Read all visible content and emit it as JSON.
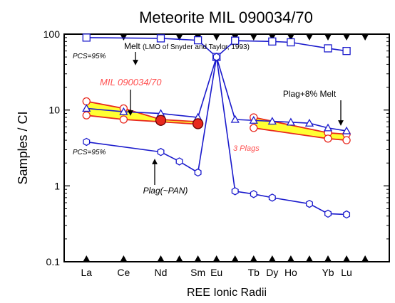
{
  "chart_data": {
    "type": "line",
    "title": "Meteorite MIL 090034/70",
    "xlabel": "REE Ionic Radii",
    "ylabel": "Samples / CI",
    "yscale": "log",
    "ylim": [
      0.1,
      100
    ],
    "yticks": [
      "0.1",
      "1",
      "10",
      "100"
    ],
    "categories": [
      "La",
      "Ce",
      "Nd",
      "Sm",
      "Eu",
      "Tb",
      "Dy",
      "Ho",
      "Yb",
      "Lu"
    ],
    "x_positions": [
      1,
      2,
      3,
      3.5,
      4,
      4.5,
      5,
      5.5,
      6,
      6.5,
      7,
      7.5,
      8,
      8.5
    ],
    "annotations": {
      "melt": "Melt",
      "melt_ref": "(LMO of Snyder and Taylor, 1993)",
      "pcs_top": "PCS=95%",
      "pcs_bottom": "PCS=95%",
      "sample": "MIL 090034/70",
      "plags": "3 Plags",
      "plag_melt": "Plag+8% Melt",
      "plag_pan": "Plag(~PAN)"
    },
    "colors": {
      "model": "#1a1acc",
      "sample": "#e8281e",
      "band": "#ffff33",
      "band_edge": "#c8a000",
      "sample_text": "#ff5050"
    },
    "series": [
      {
        "id": "melt",
        "color": "#1a1acc",
        "marker": "square",
        "points": [
          [
            1,
            90
          ],
          [
            3,
            88
          ],
          [
            4.5,
            83
          ],
          [
            5,
            50
          ],
          [
            5.5,
            82
          ],
          [
            6.5,
            80
          ],
          [
            7,
            78
          ],
          [
            8.5,
            65
          ],
          [
            9,
            60
          ]
        ]
      },
      {
        "id": "plag_pan",
        "color": "#1a1acc",
        "marker": "hexagon",
        "segments": [
          [
            [
              1,
              3.8
            ],
            [
              3,
              2.8
            ],
            [
              4,
              2.1
            ],
            [
              4.5,
              1.5
            ],
            [
              5,
              50
            ]
          ],
          [
            [
              5,
              50
            ],
            [
              5.5,
              0.85
            ],
            [
              6,
              0.78
            ],
            [
              6.5,
              0.7
            ],
            [
              7.5,
              0.58
            ],
            [
              8.5,
              0.43
            ],
            [
              9,
              0.42
            ]
          ]
        ]
      },
      {
        "id": "plag_melt",
        "color": "#1a1acc",
        "marker": "triangle",
        "segments": [
          [
            [
              1,
              10.5
            ],
            [
              2,
              9.5
            ],
            [
              3,
              9.0
            ],
            [
              4.5,
              8.0
            ],
            [
              5,
              50
            ]
          ],
          [
            [
              5,
              50
            ],
            [
              5.5,
              7.5
            ],
            [
              6,
              7.3
            ],
            [
              6.5,
              7.1
            ],
            [
              7,
              6.9
            ],
            [
              7.5,
              6.7
            ],
            [
              8.5,
              5.8
            ],
            [
              9,
              5.3
            ]
          ]
        ]
      },
      {
        "id": "sample_upper",
        "color": "#e8281e",
        "marker": "circle",
        "segments": [
          [
            [
              1,
              13
            ],
            [
              2,
              10.5
            ],
            [
              3,
              7.5
            ],
            [
              4.5,
              7.0
            ]
          ],
          [
            [
              6,
              8.0
            ],
            [
              8.5,
              5.0
            ],
            [
              9,
              4.8
            ]
          ]
        ]
      },
      {
        "id": "sample_lower",
        "color": "#e8281e",
        "marker": "circle",
        "segments": [
          [
            [
              1,
              8.5
            ],
            [
              2,
              7.5
            ],
            [
              3,
              7.0
            ],
            [
              4.5,
              6.5
            ]
          ],
          [
            [
              6,
              5.8
            ],
            [
              8.5,
              4.2
            ],
            [
              9,
              4.0
            ]
          ]
        ]
      },
      {
        "id": "plags_solid",
        "color": "#e8281e",
        "marker": "filled-circle",
        "points": [
          [
            3,
            7.3
          ],
          [
            4.5,
            6.6
          ]
        ]
      }
    ]
  }
}
